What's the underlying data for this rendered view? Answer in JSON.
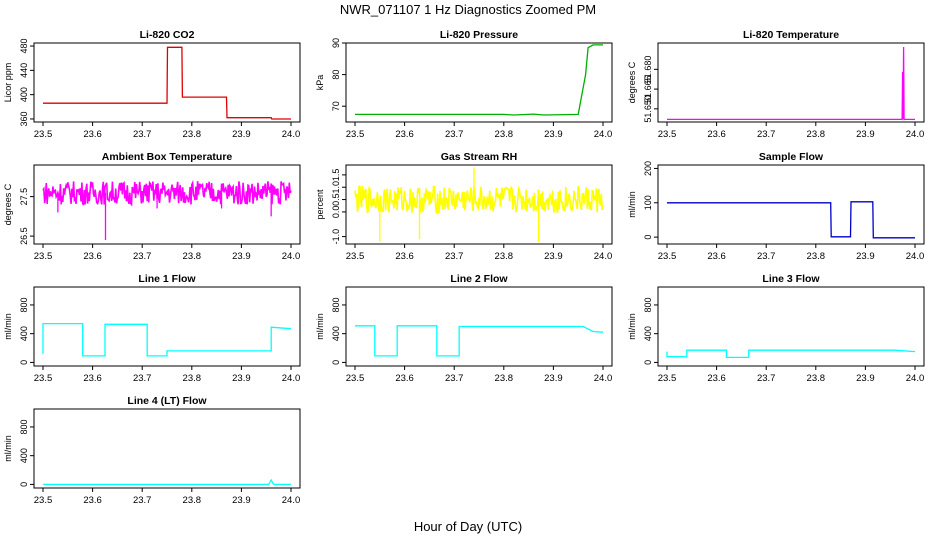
{
  "page": {
    "title": "NWR_071107  1 Hz Diagnostics Zoomed PM",
    "xlabel": "Hour of Day (UTC)"
  },
  "chart_data": [
    {
      "type": "line",
      "title": "Li-820 CO2",
      "ylabel": "Licor ppm",
      "color": "#e00000",
      "xlim": [
        23.5,
        24.0
      ],
      "ylim": [
        355,
        485
      ],
      "x_ticks": [
        "23.5",
        "23.6",
        "23.7",
        "23.8",
        "23.9",
        "24.0"
      ],
      "y_ticks": [
        {
          "v": 360,
          "t": "360"
        },
        {
          "v": 400,
          "t": "400"
        },
        {
          "v": 440,
          "t": "440"
        },
        {
          "v": 480,
          "t": "480"
        }
      ],
      "series": [
        {
          "x": [
            23.5,
            23.6,
            23.75,
            23.751,
            23.78,
            23.781,
            23.87,
            23.871,
            23.96,
            23.961,
            24.0
          ],
          "y": [
            386,
            386,
            386,
            478,
            478,
            396,
            396,
            362,
            362,
            360,
            360
          ]
        }
      ],
      "spikes": [
        [
          23.96,
          366
        ]
      ]
    },
    {
      "type": "line",
      "title": "Li-820 Pressure",
      "ylabel": "kPa",
      "color": "#00b000",
      "xlim": [
        23.5,
        24.0
      ],
      "ylim": [
        65,
        90
      ],
      "x_ticks": [
        "23.5",
        "23.6",
        "23.7",
        "23.8",
        "23.9",
        "24.0"
      ],
      "y_ticks": [
        {
          "v": 70,
          "t": "70"
        },
        {
          "v": 80,
          "t": "80"
        },
        {
          "v": 90,
          "t": "90"
        }
      ],
      "series": [
        {
          "x": [
            23.5,
            23.8,
            23.82,
            23.86,
            23.88,
            23.95,
            23.965,
            23.97,
            23.98,
            24.0
          ],
          "y": [
            67.4,
            67.4,
            67.2,
            67.5,
            67.2,
            67.4,
            80,
            88.5,
            89.4,
            89.4
          ]
        }
      ]
    },
    {
      "type": "line",
      "title": "Li-820 Temperature",
      "ylabel": "degrees C",
      "color": "#ff00ff",
      "xlim": [
        23.5,
        24.0
      ],
      "ylim": [
        51.64,
        51.7
      ],
      "x_ticks": [
        "23.5",
        "23.6",
        "23.7",
        "23.8",
        "23.9",
        "24.0"
      ],
      "y_ticks": [
        {
          "v": 51.65,
          "t": "51.650"
        },
        {
          "v": 51.665,
          "t": "51.665"
        },
        {
          "v": 51.68,
          "t": "51.680"
        }
      ],
      "series": [
        {
          "x": [
            23.5,
            23.974,
            23.975,
            23.976,
            23.977,
            23.978,
            23.979,
            24.0
          ],
          "y": [
            51.642,
            51.642,
            51.678,
            51.642,
            51.697,
            51.642,
            51.642,
            51.642
          ]
        }
      ]
    },
    {
      "type": "line",
      "title": "Ambient Box Temperature",
      "ylabel": "degrees C",
      "color": "#ff00ff",
      "xlim": [
        23.5,
        24.0
      ],
      "ylim": [
        26.3,
        28.3
      ],
      "x_ticks": [
        "23.5",
        "23.6",
        "23.7",
        "23.8",
        "23.9",
        "24.0"
      ],
      "y_ticks": [
        {
          "v": 26.5,
          "t": "26.5"
        },
        {
          "v": 27.5,
          "t": "27.5"
        }
      ],
      "noise": {
        "center": 27.6,
        "amp": 0.3
      },
      "spikes": [
        [
          23.626,
          26.4
        ],
        [
          23.53,
          27.1
        ],
        [
          23.73,
          27.2
        ],
        [
          23.86,
          27.2
        ],
        [
          23.96,
          27.0
        ]
      ]
    },
    {
      "type": "line",
      "title": "Gas Stream RH",
      "ylabel": "percent",
      "color": "#ffff00",
      "xlim": [
        23.5,
        24.0
      ],
      "ylim": [
        -1.3,
        1.9
      ],
      "x_ticks": [
        "23.5",
        "23.6",
        "23.7",
        "23.8",
        "23.9",
        "24.0"
      ],
      "y_ticks": [
        {
          "v": -1.0,
          "t": "-1.0"
        },
        {
          "v": 0.0,
          "t": "0.0"
        },
        {
          "v": 0.5,
          "t": "0.5"
        },
        {
          "v": 1.0,
          "t": "1.0"
        },
        {
          "v": 1.5,
          "t": "1.5"
        }
      ],
      "noise": {
        "center": 0.5,
        "amp": 0.55
      },
      "spikes": [
        [
          23.74,
          1.8
        ],
        [
          23.55,
          -1.2
        ],
        [
          23.63,
          -1.1
        ],
        [
          23.87,
          -1.2
        ]
      ]
    },
    {
      "type": "line",
      "title": "Sample Flow",
      "ylabel": "ml/min",
      "color": "#0000c8",
      "xlim": [
        23.5,
        24.0
      ],
      "ylim": [
        -20,
        210
      ],
      "x_ticks": [
        "23.5",
        "23.6",
        "23.7",
        "23.8",
        "23.9",
        "24.0"
      ],
      "y_ticks": [
        {
          "v": 0,
          "t": "0"
        },
        {
          "v": 100,
          "t": "100"
        },
        {
          "v": 200,
          "t": "200"
        }
      ],
      "series": [
        {
          "x": [
            23.5,
            23.83,
            23.831,
            23.87,
            23.871,
            23.915,
            23.916,
            24.0
          ],
          "y": [
            100,
            100,
            1,
            1,
            103,
            103,
            -2,
            -2
          ]
        }
      ]
    },
    {
      "type": "line",
      "title": "Line 1 Flow",
      "ylabel": "ml/min",
      "color": "#00ffff",
      "xlim": [
        23.5,
        24.0
      ],
      "ylim": [
        -50,
        1050
      ],
      "x_ticks": [
        "23.5",
        "23.6",
        "23.7",
        "23.8",
        "23.9",
        "24.0"
      ],
      "y_ticks": [
        {
          "v": 0,
          "t": "0"
        },
        {
          "v": 400,
          "t": "400"
        },
        {
          "v": 800,
          "t": "800"
        }
      ],
      "series": [
        {
          "x": [
            23.5,
            23.5,
            23.58,
            23.58,
            23.625,
            23.625,
            23.71,
            23.71,
            23.75,
            23.75,
            23.96,
            23.96,
            24.0
          ],
          "y": [
            120,
            540,
            540,
            90,
            90,
            530,
            530,
            90,
            90,
            160,
            160,
            490,
            470
          ]
        }
      ]
    },
    {
      "type": "line",
      "title": "Line 2 Flow",
      "ylabel": "ml/min",
      "color": "#00ffff",
      "xlim": [
        23.5,
        24.0
      ],
      "ylim": [
        -50,
        1050
      ],
      "x_ticks": [
        "23.5",
        "23.6",
        "23.7",
        "23.8",
        "23.9",
        "24.0"
      ],
      "y_ticks": [
        {
          "v": 0,
          "t": "0"
        },
        {
          "v": 400,
          "t": "400"
        },
        {
          "v": 800,
          "t": "800"
        }
      ],
      "series": [
        {
          "x": [
            23.5,
            23.54,
            23.54,
            23.585,
            23.585,
            23.665,
            23.665,
            23.71,
            23.71,
            23.96,
            23.98,
            24.0
          ],
          "y": [
            510,
            510,
            90,
            90,
            510,
            510,
            90,
            90,
            500,
            500,
            430,
            420
          ]
        }
      ]
    },
    {
      "type": "line",
      "title": "Line 3 Flow",
      "ylabel": "ml/min",
      "color": "#00ffff",
      "xlim": [
        23.5,
        24.0
      ],
      "ylim": [
        -50,
        1050
      ],
      "x_ticks": [
        "23.5",
        "23.6",
        "23.7",
        "23.8",
        "23.9",
        "24.0"
      ],
      "y_ticks": [
        {
          "v": 0,
          "t": "0"
        },
        {
          "v": 400,
          "t": "400"
        },
        {
          "v": 800,
          "t": "800"
        }
      ],
      "series": [
        {
          "x": [
            23.5,
            23.5,
            23.54,
            23.54,
            23.62,
            23.62,
            23.665,
            23.665,
            23.96,
            24.0
          ],
          "y": [
            150,
            80,
            80,
            170,
            170,
            70,
            70,
            170,
            170,
            150
          ]
        }
      ]
    },
    {
      "type": "line",
      "title": "Line 4 (LT) Flow",
      "ylabel": "ml/min",
      "color": "#00ffff",
      "xlim": [
        23.5,
        24.0
      ],
      "ylim": [
        -50,
        1050
      ],
      "x_ticks": [
        "23.5",
        "23.6",
        "23.7",
        "23.8",
        "23.9",
        "24.0"
      ],
      "y_ticks": [
        {
          "v": 0,
          "t": "0"
        },
        {
          "v": 400,
          "t": "400"
        },
        {
          "v": 800,
          "t": "800"
        }
      ],
      "series": [
        {
          "x": [
            23.5,
            23.955,
            23.96,
            23.965,
            24.0
          ],
          "y": [
            0,
            0,
            60,
            0,
            0
          ]
        }
      ]
    }
  ]
}
